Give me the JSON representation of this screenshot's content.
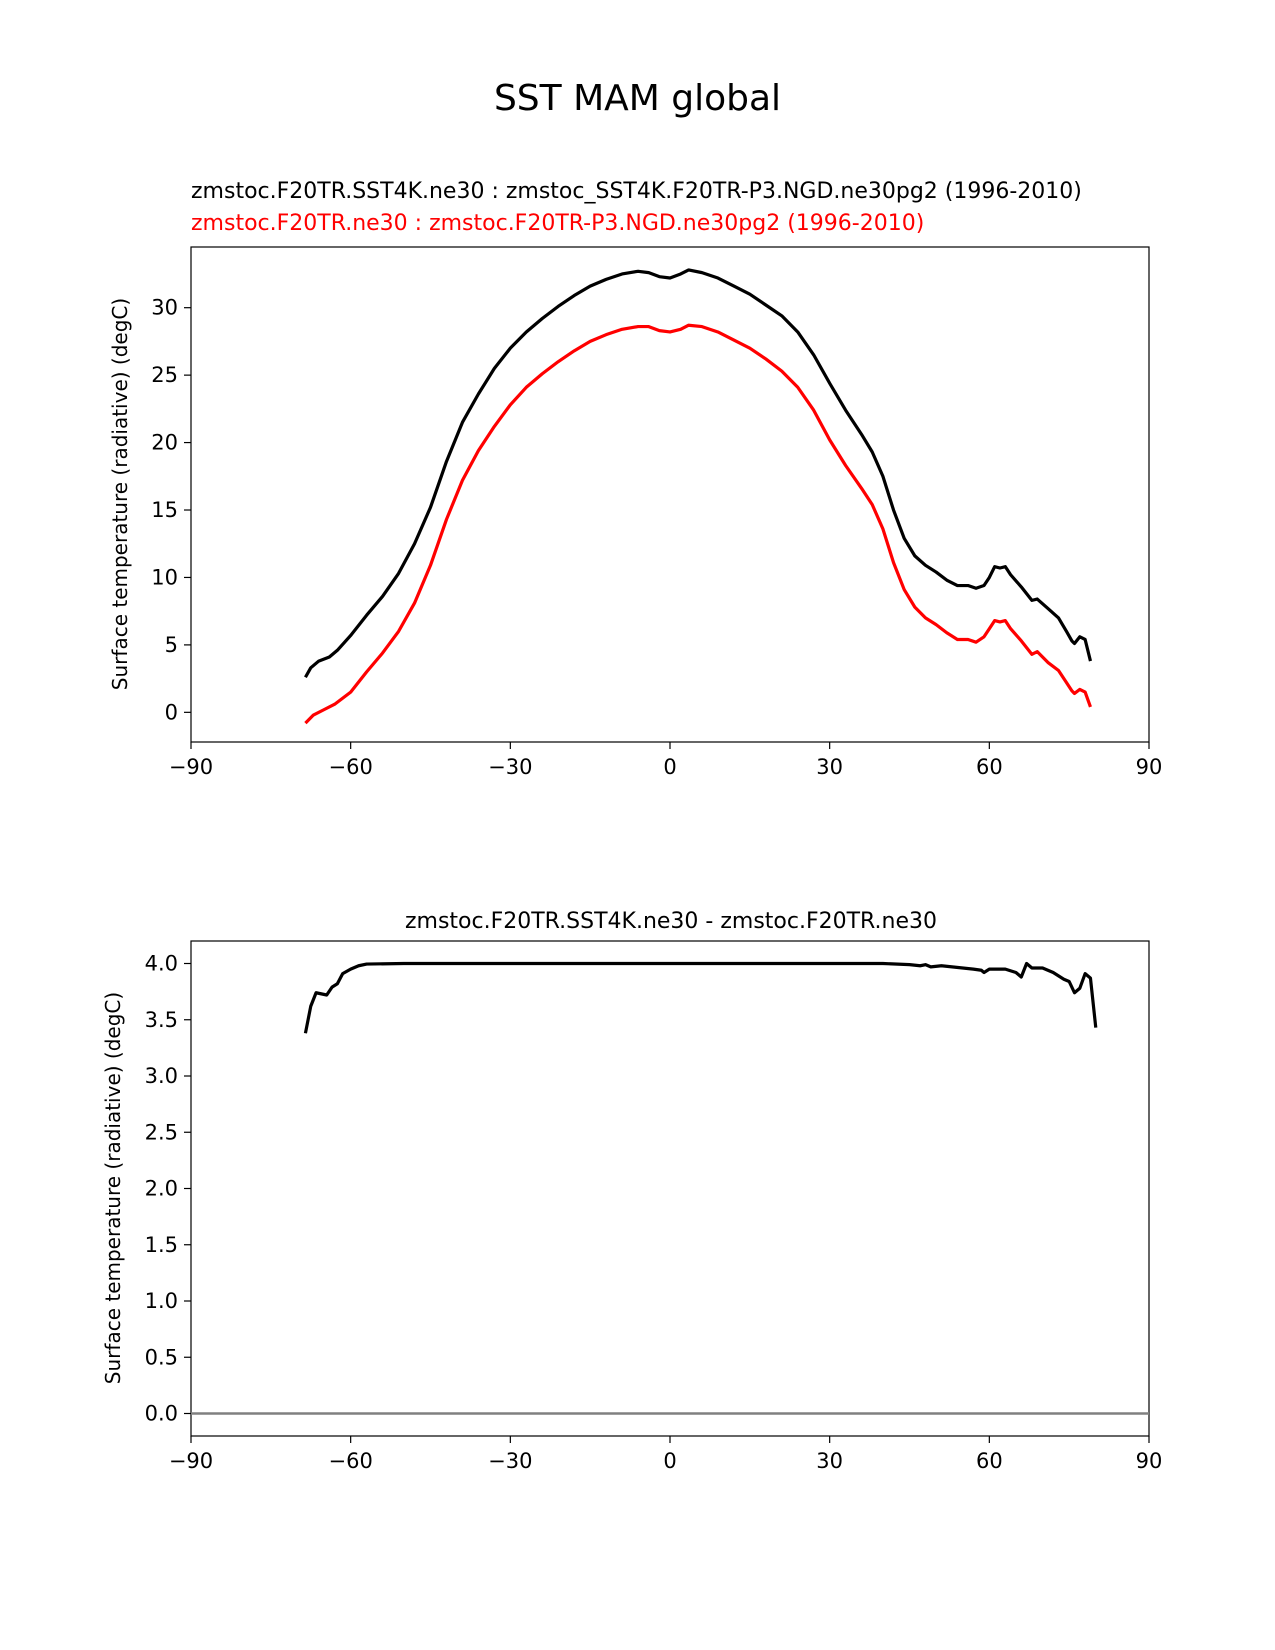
{
  "figure_title": "SST MAM global",
  "chart_data": [
    {
      "type": "line",
      "title_lines": [
        {
          "text": "zmstoc.F20TR.SST4K.ne30 : zmstoc_SST4K.F20TR-P3.NGD.ne30pg2 (1996-2010)",
          "color": "#000000"
        },
        {
          "text": "zmstoc.F20TR.ne30 : zmstoc.F20TR-P3.NGD.ne30pg2 (1996-2010)",
          "color": "#ff0000"
        }
      ],
      "xlabel": "",
      "ylabel": "Surface temperature (radiative) (degC)",
      "xlim": [
        -90,
        90
      ],
      "ylim": [
        -2.2,
        34.5
      ],
      "xticks": [
        -90,
        -60,
        -30,
        0,
        30,
        60,
        90
      ],
      "xtick_labels": [
        "−90",
        "−60",
        "−30",
        "0",
        "30",
        "60",
        "90"
      ],
      "yticks": [
        0,
        5,
        10,
        15,
        20,
        25,
        30
      ],
      "ytick_labels": [
        "0",
        "5",
        "10",
        "15",
        "20",
        "25",
        "30"
      ],
      "series": [
        {
          "name": "zmstoc.F20TR.SST4K.ne30",
          "color": "#000000",
          "points": [
            [
              -68.5,
              2.6
            ],
            [
              -67.5,
              3.3
            ],
            [
              -66,
              3.8
            ],
            [
              -64,
              4.1
            ],
            [
              -62.5,
              4.6
            ],
            [
              -60,
              5.7
            ],
            [
              -57,
              7.2
            ],
            [
              -54,
              8.6
            ],
            [
              -51,
              10.3
            ],
            [
              -48,
              12.5
            ],
            [
              -45,
              15.2
            ],
            [
              -42,
              18.6
            ],
            [
              -39,
              21.5
            ],
            [
              -36,
              23.6
            ],
            [
              -33,
              25.5
            ],
            [
              -30,
              27.0
            ],
            [
              -27,
              28.2
            ],
            [
              -24,
              29.2
            ],
            [
              -21,
              30.1
            ],
            [
              -18,
              30.9
            ],
            [
              -15,
              31.6
            ],
            [
              -12,
              32.1
            ],
            [
              -9,
              32.5
            ],
            [
              -6,
              32.7
            ],
            [
              -4,
              32.6
            ],
            [
              -2,
              32.3
            ],
            [
              0,
              32.2
            ],
            [
              2,
              32.5
            ],
            [
              3.5,
              32.8
            ],
            [
              6,
              32.6
            ],
            [
              9,
              32.2
            ],
            [
              12,
              31.6
            ],
            [
              15,
              31.0
            ],
            [
              18,
              30.2
            ],
            [
              21,
              29.4
            ],
            [
              24,
              28.2
            ],
            [
              27,
              26.5
            ],
            [
              30,
              24.4
            ],
            [
              33,
              22.4
            ],
            [
              36,
              20.6
            ],
            [
              38,
              19.3
            ],
            [
              40,
              17.5
            ],
            [
              42,
              15.0
            ],
            [
              44,
              12.9
            ],
            [
              46,
              11.6
            ],
            [
              48,
              10.9
            ],
            [
              50,
              10.4
            ],
            [
              52,
              9.8
            ],
            [
              54,
              9.4
            ],
            [
              56,
              9.4
            ],
            [
              57.5,
              9.2
            ],
            [
              59,
              9.4
            ],
            [
              60,
              10.0
            ],
            [
              61,
              10.8
            ],
            [
              62,
              10.7
            ],
            [
              63,
              10.8
            ],
            [
              64,
              10.2
            ],
            [
              66,
              9.3
            ],
            [
              68,
              8.3
            ],
            [
              69,
              8.4
            ],
            [
              71,
              7.7
            ],
            [
              73,
              7.0
            ],
            [
              74.5,
              6.0
            ],
            [
              75.5,
              5.3
            ],
            [
              76,
              5.1
            ],
            [
              77,
              5.6
            ],
            [
              78,
              5.4
            ],
            [
              79,
              3.8
            ]
          ]
        },
        {
          "name": "zmstoc.F20TR.ne30",
          "color": "#ff0000",
          "points": [
            [
              -68.5,
              -0.8
            ],
            [
              -67,
              -0.2
            ],
            [
              -65,
              0.2
            ],
            [
              -63,
              0.6
            ],
            [
              -60,
              1.5
            ],
            [
              -57,
              3.0
            ],
            [
              -54,
              4.4
            ],
            [
              -51,
              6.0
            ],
            [
              -48,
              8.1
            ],
            [
              -45,
              10.9
            ],
            [
              -42,
              14.3
            ],
            [
              -39,
              17.2
            ],
            [
              -36,
              19.4
            ],
            [
              -33,
              21.2
            ],
            [
              -30,
              22.8
            ],
            [
              -27,
              24.1
            ],
            [
              -24,
              25.1
            ],
            [
              -21,
              26.0
            ],
            [
              -18,
              26.8
            ],
            [
              -15,
              27.5
            ],
            [
              -12,
              28.0
            ],
            [
              -9,
              28.4
            ],
            [
              -6,
              28.6
            ],
            [
              -4,
              28.6
            ],
            [
              -2,
              28.3
            ],
            [
              0,
              28.2
            ],
            [
              2,
              28.4
            ],
            [
              3.5,
              28.7
            ],
            [
              6,
              28.6
            ],
            [
              9,
              28.2
            ],
            [
              12,
              27.6
            ],
            [
              15,
              27.0
            ],
            [
              18,
              26.2
            ],
            [
              21,
              25.3
            ],
            [
              24,
              24.1
            ],
            [
              27,
              22.4
            ],
            [
              30,
              20.2
            ],
            [
              33,
              18.3
            ],
            [
              36,
              16.6
            ],
            [
              38,
              15.4
            ],
            [
              40,
              13.6
            ],
            [
              42,
              11.1
            ],
            [
              44,
              9.1
            ],
            [
              46,
              7.8
            ],
            [
              48,
              7.0
            ],
            [
              50,
              6.5
            ],
            [
              52,
              5.9
            ],
            [
              54,
              5.4
            ],
            [
              56,
              5.4
            ],
            [
              57.5,
              5.2
            ],
            [
              59,
              5.6
            ],
            [
              60,
              6.2
            ],
            [
              61,
              6.8
            ],
            [
              62,
              6.7
            ],
            [
              63,
              6.8
            ],
            [
              64,
              6.2
            ],
            [
              66,
              5.3
            ],
            [
              68,
              4.3
            ],
            [
              69,
              4.5
            ],
            [
              71,
              3.7
            ],
            [
              73,
              3.1
            ],
            [
              74.5,
              2.2
            ],
            [
              75.5,
              1.6
            ],
            [
              76,
              1.4
            ],
            [
              77,
              1.7
            ],
            [
              78,
              1.5
            ],
            [
              79,
              0.4
            ]
          ]
        }
      ]
    },
    {
      "type": "line",
      "title_lines": [
        {
          "text": "zmstoc.F20TR.SST4K.ne30 - zmstoc.F20TR.ne30",
          "color": "#000000"
        }
      ],
      "xlabel": "",
      "ylabel": "Surface temperature (radiative) (degC)",
      "xlim": [
        -90,
        90
      ],
      "ylim": [
        -0.2,
        4.2
      ],
      "xticks": [
        -90,
        -60,
        -30,
        0,
        30,
        60,
        90
      ],
      "xtick_labels": [
        "−90",
        "−60",
        "−30",
        "0",
        "30",
        "60",
        "90"
      ],
      "yticks": [
        0.0,
        0.5,
        1.0,
        1.5,
        2.0,
        2.5,
        3.0,
        3.5,
        4.0
      ],
      "ytick_labels": [
        "0.0",
        "0.5",
        "1.0",
        "1.5",
        "2.0",
        "2.5",
        "3.0",
        "3.5",
        "4.0"
      ],
      "reference_line": {
        "y": 0,
        "color": "#808080"
      },
      "series": [
        {
          "name": "zmstoc.F20TR.SST4K.ne30 - zmstoc.F20TR.ne30",
          "color": "#000000",
          "points": [
            [
              -68.5,
              3.38
            ],
            [
              -67.5,
              3.62
            ],
            [
              -66.5,
              3.74
            ],
            [
              -64.5,
              3.72
            ],
            [
              -63.5,
              3.79
            ],
            [
              -62.5,
              3.82
            ],
            [
              -61.5,
              3.91
            ],
            [
              -60,
              3.95
            ],
            [
              -58.5,
              3.98
            ],
            [
              -57,
              3.995
            ],
            [
              -50,
              4.0
            ],
            [
              -30,
              4.0
            ],
            [
              0,
              4.0
            ],
            [
              30,
              4.0
            ],
            [
              40,
              4.0
            ],
            [
              45,
              3.99
            ],
            [
              47,
              3.98
            ],
            [
              48,
              3.99
            ],
            [
              49,
              3.97
            ],
            [
              51,
              3.98
            ],
            [
              53,
              3.97
            ],
            [
              55,
              3.96
            ],
            [
              57,
              3.95
            ],
            [
              58.5,
              3.94
            ],
            [
              59,
              3.92
            ],
            [
              60,
              3.95
            ],
            [
              63,
              3.95
            ],
            [
              65,
              3.92
            ],
            [
              66,
              3.88
            ],
            [
              67,
              4.0
            ],
            [
              68,
              3.96
            ],
            [
              70,
              3.96
            ],
            [
              72,
              3.92
            ],
            [
              74,
              3.86
            ],
            [
              75,
              3.84
            ],
            [
              76,
              3.74
            ],
            [
              77,
              3.78
            ],
            [
              78,
              3.91
            ],
            [
              79,
              3.87
            ],
            [
              80,
              3.43
            ]
          ]
        }
      ]
    }
  ]
}
